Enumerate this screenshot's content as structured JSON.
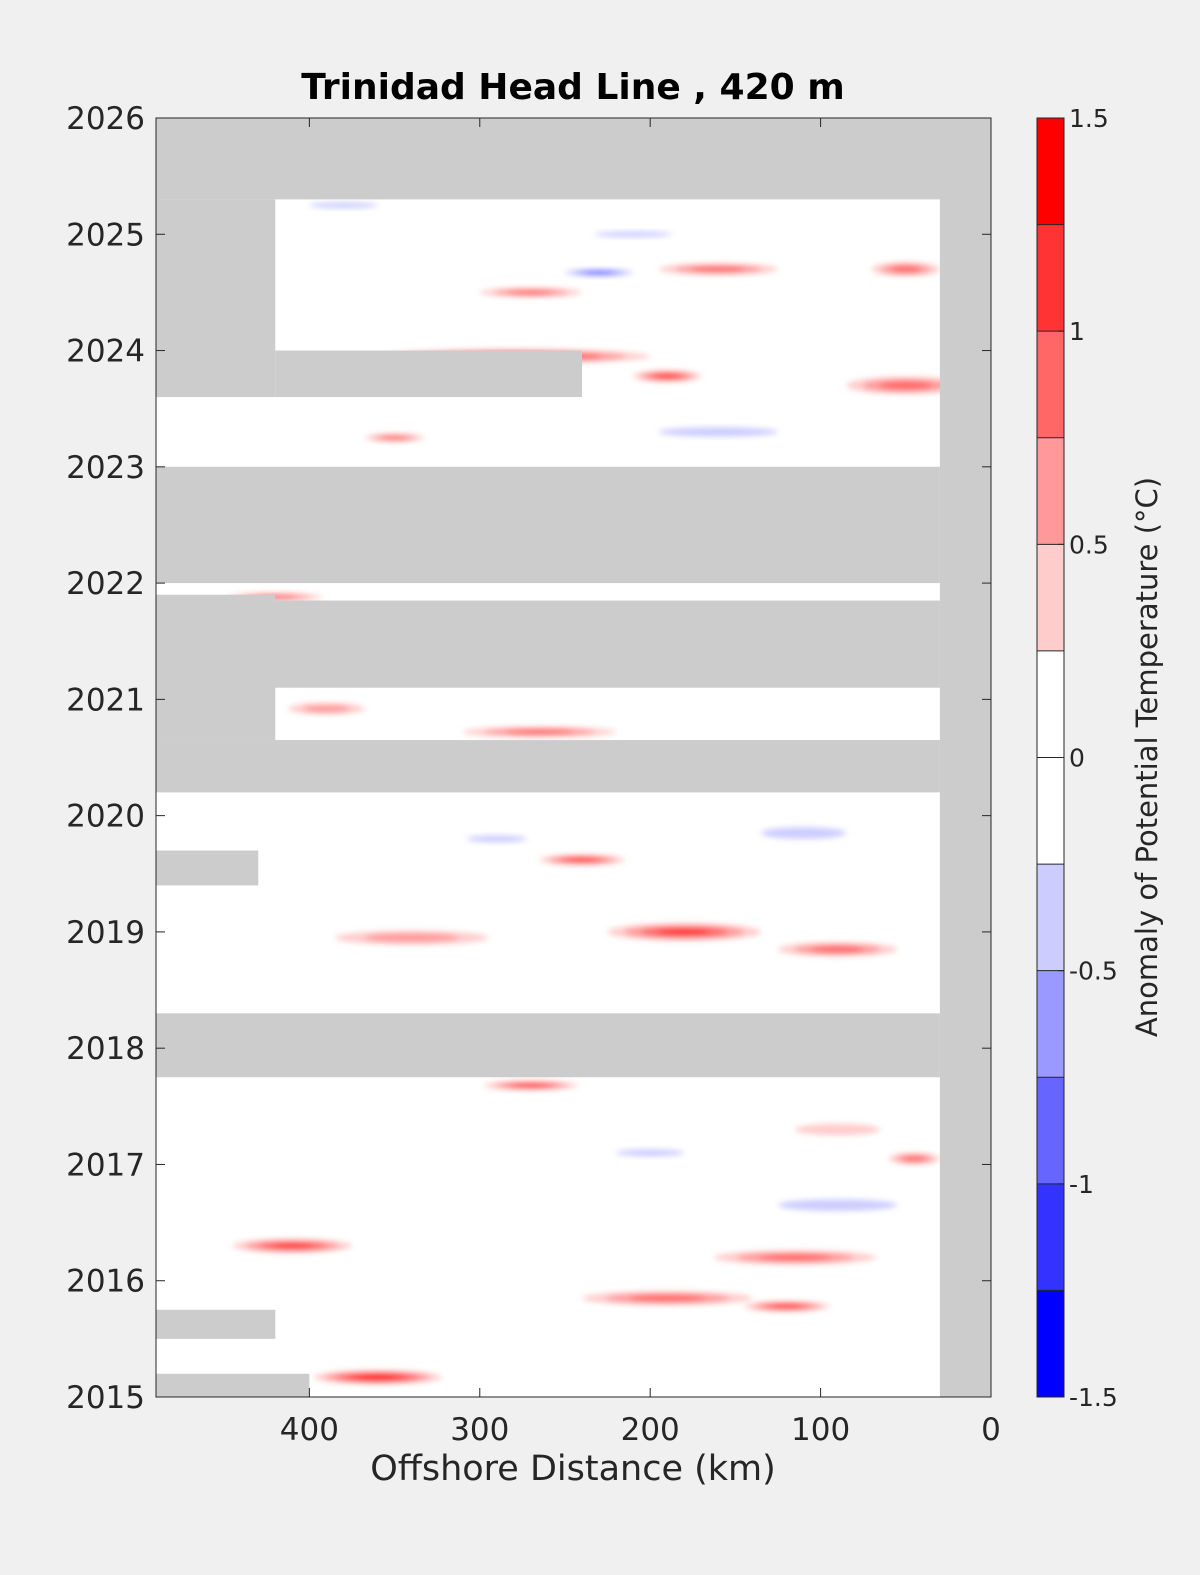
{
  "chart_data": {
    "type": "heatmap",
    "title": "Trinidad Head Line , 420 m",
    "xlabel": "Offshore Distance (km)",
    "ylabel": "",
    "xlim": [
      490,
      0
    ],
    "x_reversed": true,
    "x_ticks": [
      "400",
      "300",
      "200",
      "100",
      "0"
    ],
    "x_tick_values": [
      400,
      300,
      200,
      100,
      0
    ],
    "ylim": [
      2015,
      2026
    ],
    "y_ticks": [
      "2015",
      "2016",
      "2017",
      "2018",
      "2019",
      "2020",
      "2021",
      "2022",
      "2023",
      "2024",
      "2025",
      "2026"
    ],
    "y_tick_values": [
      2015,
      2016,
      2017,
      2018,
      2019,
      2020,
      2021,
      2022,
      2023,
      2024,
      2025,
      2026
    ],
    "colorbar": {
      "label": "Anomaly of Potential Temperature (°C)",
      "range": [
        -1.5,
        1.5
      ],
      "tick_labels": [
        "1.5",
        "1",
        "0.5",
        "0",
        "-0.5",
        "-1",
        "-1.5"
      ],
      "tick_values": [
        1.5,
        1,
        0.5,
        0,
        -0.5,
        -1,
        -1.5
      ],
      "levels": [
        {
          "min": 1.25,
          "max": 1.5,
          "color": "#ff0000"
        },
        {
          "min": 1.0,
          "max": 1.25,
          "color": "#ff3333"
        },
        {
          "min": 0.75,
          "max": 1.0,
          "color": "#ff6666"
        },
        {
          "min": 0.5,
          "max": 0.75,
          "color": "#ff9999"
        },
        {
          "min": 0.25,
          "max": 0.5,
          "color": "#ffcccc"
        },
        {
          "min": 0.0,
          "max": 0.25,
          "color": "#ffffff"
        },
        {
          "min": -0.25,
          "max": 0.0,
          "color": "#ffffff"
        },
        {
          "min": -0.5,
          "max": -0.25,
          "color": "#ccccff"
        },
        {
          "min": -0.75,
          "max": -0.5,
          "color": "#9999ff"
        },
        {
          "min": -1.0,
          "max": -0.75,
          "color": "#6666ff"
        },
        {
          "min": -1.25,
          "max": -1.0,
          "color": "#3333ff"
        },
        {
          "min": -1.5,
          "max": -1.25,
          "color": "#0000ff"
        }
      ]
    },
    "no_data_color": "#cccccc",
    "data_gaps": [
      {
        "x_range": [
          490,
          0
        ],
        "y_range": [
          2025.3,
          2026
        ]
      },
      {
        "x_range": [
          490,
          30
        ],
        "y_range": [
          2022.0,
          2023.0
        ]
      },
      {
        "x_range": [
          490,
          30
        ],
        "y_range": [
          2021.1,
          2021.85
        ]
      },
      {
        "x_range": [
          490,
          30
        ],
        "y_range": [
          2020.2,
          2020.65
        ]
      },
      {
        "x_range": [
          490,
          30
        ],
        "y_range": [
          2017.75,
          2018.3
        ]
      },
      {
        "x_range": [
          490,
          420
        ],
        "y_range": [
          2023.6,
          2025.3
        ]
      },
      {
        "x_range": [
          420,
          240
        ],
        "y_range": [
          2023.6,
          2024.0
        ]
      },
      {
        "x_range": [
          490,
          420
        ],
        "y_range": [
          2020.65,
          2021.9
        ]
      },
      {
        "x_range": [
          490,
          430
        ],
        "y_range": [
          2019.4,
          2019.7
        ]
      },
      {
        "x_range": [
          490,
          420
        ],
        "y_range": [
          2015.5,
          2015.75
        ]
      },
      {
        "x_range": [
          490,
          400
        ],
        "y_range": [
          2015.0,
          2015.2
        ]
      },
      {
        "x_range": [
          30,
          0
        ],
        "y_range": [
          2015,
          2026
        ]
      }
    ],
    "anomaly_features": [
      {
        "x": 280,
        "y": 2023.95,
        "w": 160,
        "h": 0.12,
        "value": 1.5
      },
      {
        "x": 190,
        "y": 2023.78,
        "w": 40,
        "h": 0.1,
        "value": 1.3
      },
      {
        "x": 50,
        "y": 2023.7,
        "w": 70,
        "h": 0.15,
        "value": 1.1
      },
      {
        "x": 160,
        "y": 2024.7,
        "w": 70,
        "h": 0.1,
        "value": 1.0
      },
      {
        "x": 270,
        "y": 2024.5,
        "w": 60,
        "h": 0.08,
        "value": 1.0
      },
      {
        "x": 50,
        "y": 2024.7,
        "w": 40,
        "h": 0.12,
        "value": 1.0
      },
      {
        "x": 350,
        "y": 2023.25,
        "w": 35,
        "h": 0.07,
        "value": 0.9
      },
      {
        "x": 420,
        "y": 2021.88,
        "w": 55,
        "h": 0.07,
        "value": 1.0
      },
      {
        "x": 265,
        "y": 2020.72,
        "w": 90,
        "h": 0.09,
        "value": 1.1
      },
      {
        "x": 390,
        "y": 2020.92,
        "w": 45,
        "h": 0.1,
        "value": 0.8
      },
      {
        "x": 240,
        "y": 2019.62,
        "w": 50,
        "h": 0.09,
        "value": 1.3
      },
      {
        "x": 180,
        "y": 2019.0,
        "w": 90,
        "h": 0.15,
        "value": 1.2
      },
      {
        "x": 90,
        "y": 2018.85,
        "w": 70,
        "h": 0.12,
        "value": 1.0
      },
      {
        "x": 340,
        "y": 2018.95,
        "w": 90,
        "h": 0.12,
        "value": 0.7
      },
      {
        "x": 270,
        "y": 2017.68,
        "w": 55,
        "h": 0.08,
        "value": 1.2
      },
      {
        "x": 410,
        "y": 2016.3,
        "w": 70,
        "h": 0.12,
        "value": 1.3
      },
      {
        "x": 115,
        "y": 2016.2,
        "w": 95,
        "h": 0.12,
        "value": 1.0
      },
      {
        "x": 190,
        "y": 2015.85,
        "w": 100,
        "h": 0.12,
        "value": 1.0
      },
      {
        "x": 120,
        "y": 2015.78,
        "w": 50,
        "h": 0.09,
        "value": 1.2
      },
      {
        "x": 360,
        "y": 2015.17,
        "w": 75,
        "h": 0.12,
        "value": 1.5
      },
      {
        "x": 45,
        "y": 2017.05,
        "w": 30,
        "h": 0.1,
        "value": 0.9
      },
      {
        "x": 90,
        "y": 2017.3,
        "w": 50,
        "h": 0.1,
        "value": 0.6
      },
      {
        "x": 230,
        "y": 2024.67,
        "w": 40,
        "h": 0.06,
        "value": -1.0
      },
      {
        "x": 160,
        "y": 2023.3,
        "w": 70,
        "h": 0.08,
        "value": -0.4
      },
      {
        "x": 110,
        "y": 2019.85,
        "w": 50,
        "h": 0.1,
        "value": -0.4
      },
      {
        "x": 290,
        "y": 2019.8,
        "w": 35,
        "h": 0.06,
        "value": -0.4
      },
      {
        "x": 90,
        "y": 2016.65,
        "w": 70,
        "h": 0.1,
        "value": -0.4
      },
      {
        "x": 200,
        "y": 2017.1,
        "w": 40,
        "h": 0.06,
        "value": -0.4
      },
      {
        "x": 380,
        "y": 2025.25,
        "w": 40,
        "h": 0.05,
        "value": -0.4
      },
      {
        "x": 210,
        "y": 2025.0,
        "w": 45,
        "h": 0.05,
        "value": -0.4
      }
    ]
  }
}
